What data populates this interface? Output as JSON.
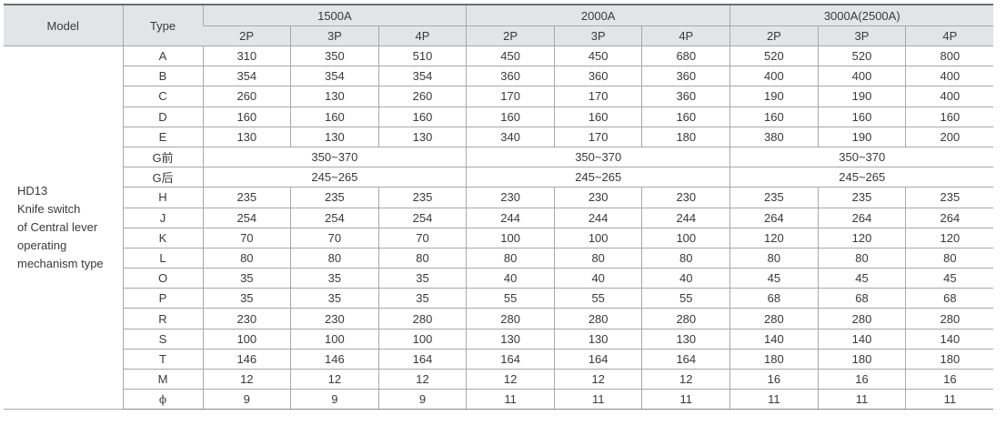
{
  "header": {
    "model": "Model",
    "type": "Type",
    "groups": [
      "1500A",
      "2000A",
      "3000A(2500A)"
    ],
    "poles": [
      "2P",
      "3P",
      "4P",
      "2P",
      "3P",
      "4P",
      "2P",
      "3P",
      "4P"
    ]
  },
  "model_lines": [
    "HD13",
    "Knife switch",
    "of Central lever",
    "operating",
    "mechanism type"
  ],
  "rows": [
    {
      "type": "A",
      "values": [
        "310",
        "350",
        "510",
        "450",
        "450",
        "680",
        "520",
        "520",
        "800"
      ]
    },
    {
      "type": "B",
      "values": [
        "354",
        "354",
        "354",
        "360",
        "360",
        "360",
        "400",
        "400",
        "400"
      ]
    },
    {
      "type": "C",
      "values": [
        "260",
        "130",
        "260",
        "170",
        "170",
        "360",
        "190",
        "190",
        "400"
      ]
    },
    {
      "type": "D",
      "values": [
        "160",
        "160",
        "160",
        "160",
        "160",
        "160",
        "160",
        "160",
        "160"
      ]
    },
    {
      "type": "E",
      "values": [
        "130",
        "130",
        "130",
        "340",
        "170",
        "180",
        "380",
        "190",
        "200"
      ]
    },
    {
      "type": "G前",
      "merged": [
        "350~370",
        "350~370",
        "350~370"
      ]
    },
    {
      "type": "G后",
      "merged": [
        "245~265",
        "245~265",
        "245~265"
      ]
    },
    {
      "type": "H",
      "values": [
        "235",
        "235",
        "235",
        "230",
        "230",
        "230",
        "235",
        "235",
        "235"
      ]
    },
    {
      "type": "J",
      "values": [
        "254",
        "254",
        "254",
        "244",
        "244",
        "244",
        "264",
        "264",
        "264"
      ]
    },
    {
      "type": "K",
      "values": [
        "70",
        "70",
        "70",
        "100",
        "100",
        "100",
        "120",
        "120",
        "120"
      ]
    },
    {
      "type": "L",
      "values": [
        "80",
        "80",
        "80",
        "80",
        "80",
        "80",
        "80",
        "80",
        "80"
      ]
    },
    {
      "type": "O",
      "values": [
        "35",
        "35",
        "35",
        "40",
        "40",
        "40",
        "45",
        "45",
        "45"
      ]
    },
    {
      "type": "P",
      "values": [
        "35",
        "35",
        "35",
        "55",
        "55",
        "55",
        "68",
        "68",
        "68"
      ]
    },
    {
      "type": "R",
      "values": [
        "230",
        "230",
        "280",
        "280",
        "280",
        "280",
        "280",
        "280",
        "280"
      ]
    },
    {
      "type": "S",
      "values": [
        "100",
        "100",
        "100",
        "130",
        "130",
        "130",
        "140",
        "140",
        "140"
      ]
    },
    {
      "type": "T",
      "values": [
        "146",
        "146",
        "164",
        "164",
        "164",
        "164",
        "180",
        "180",
        "180"
      ]
    },
    {
      "type": "M",
      "values": [
        "12",
        "12",
        "12",
        "12",
        "12",
        "12",
        "16",
        "16",
        "16"
      ]
    },
    {
      "type": "ϕ",
      "values": [
        "9",
        "9",
        "9",
        "11",
        "11",
        "11",
        "11",
        "11",
        "11"
      ]
    }
  ]
}
